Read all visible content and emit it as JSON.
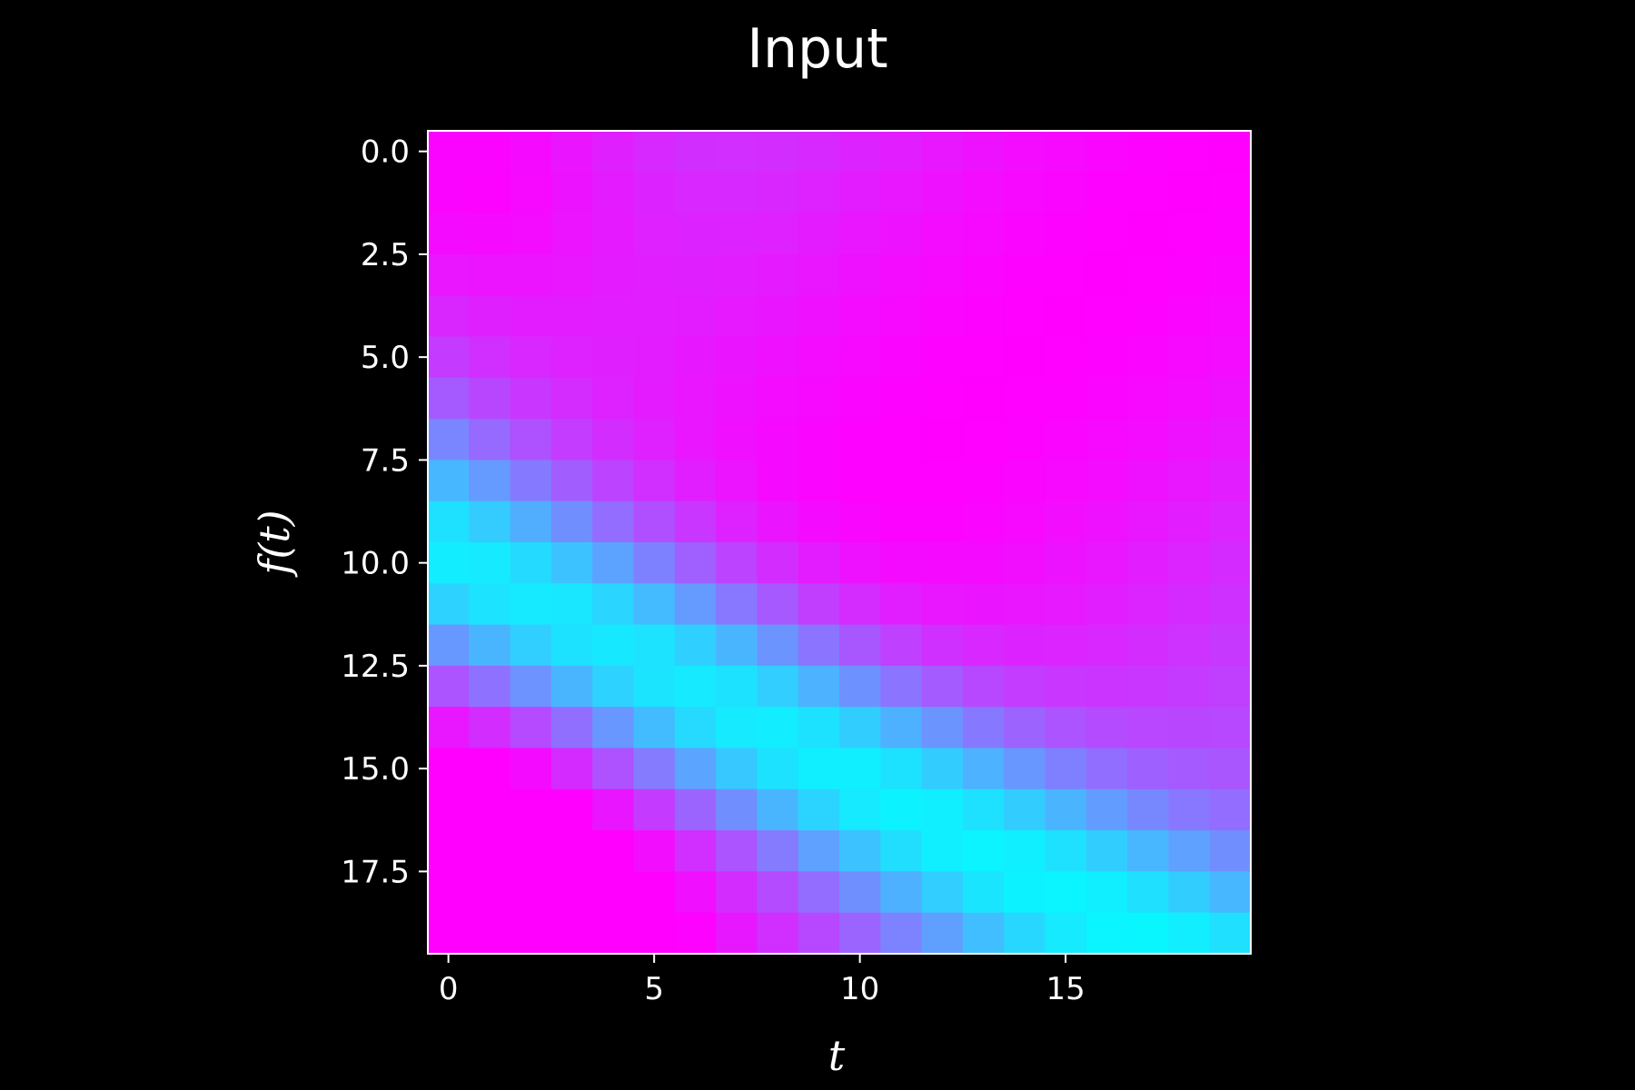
{
  "chart_data": {
    "type": "heatmap",
    "title": "Input",
    "xlabel": "t",
    "ylabel": "f(t)",
    "colormap": "cool",
    "colormap_endpoints": {
      "low": "#00ffff",
      "high": "#ff00ff"
    },
    "shape": [
      20,
      20
    ],
    "x_extent": [
      -0.5,
      19.5
    ],
    "y_extent": [
      -0.5,
      19.5
    ],
    "y_inverted": true,
    "x_ticks": [
      0,
      5,
      10,
      15
    ],
    "x_tick_labels": [
      "0",
      "5",
      "10",
      "15"
    ],
    "y_ticks": [
      0,
      2.5,
      5,
      7.5,
      10,
      12.5,
      15,
      17.5
    ],
    "y_tick_labels": [
      "0.0",
      "2.5",
      "5.0",
      "7.5",
      "10.0",
      "12.5",
      "15.0",
      "17.5"
    ],
    "value_scale": "normalized 0..1 (no colorbar shown)",
    "description_of_values": "Each cell value v maps to the cool colormap (0 = cyan, 1 = magenta). Magenta anti-diagonal band from the top-left and bottom-left corners; cyan bands roughly along f(t)≈10 at t=0 curving toward t≈10 at top and bottom."
  }
}
